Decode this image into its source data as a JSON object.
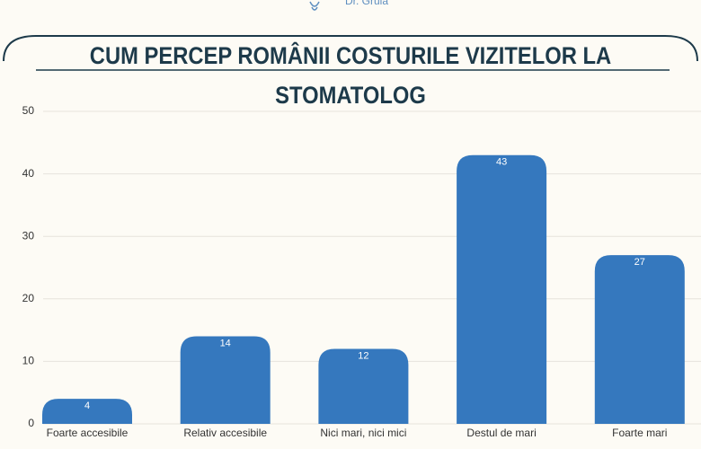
{
  "logo_text": "Dr. Gruia",
  "chart_data": {
    "type": "bar",
    "title": "CUM PERCEP ROMÂNII COSTURILE VIZITELOR LA STOMATOLOG",
    "categories": [
      "Foarte accesibile",
      "Relativ accesibile",
      "Nici mari, nici mici",
      "Destul de mari",
      "Foarte mari"
    ],
    "values": [
      4,
      14,
      12,
      43,
      27
    ],
    "color": "#3578be",
    "ylim": [
      0,
      50
    ],
    "yticks": [
      0,
      10,
      20,
      30,
      40,
      50
    ],
    "grid": true
  }
}
